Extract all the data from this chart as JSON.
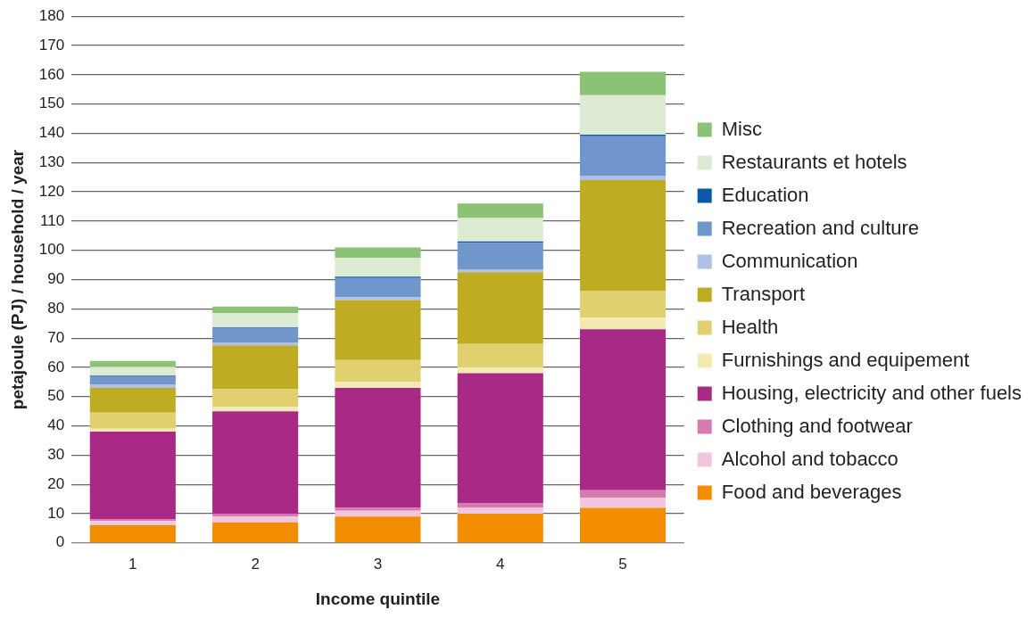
{
  "chart_data": {
    "type": "bar",
    "stacked": true,
    "xlabel": "Income quintile",
    "ylabel": "petajoule (PJ) / household / year",
    "categories": [
      "1",
      "2",
      "3",
      "4",
      "5"
    ],
    "ylim": [
      0,
      180
    ],
    "yticks": [
      0,
      10,
      20,
      30,
      40,
      50,
      60,
      70,
      80,
      90,
      100,
      110,
      120,
      130,
      140,
      150,
      160,
      170,
      180
    ],
    "grid": "y",
    "legend": "right",
    "series": [
      {
        "name": "Food and beverages",
        "color": "#f28c00",
        "values": [
          6,
          7,
          9,
          10,
          12
        ]
      },
      {
        "name": "Alcohol and tobacco",
        "color": "#f2c6de",
        "values": [
          1.5,
          2,
          2,
          2,
          3.5
        ]
      },
      {
        "name": "Clothing and footwear",
        "color": "#d67bb0",
        "values": [
          0.5,
          1,
          1,
          1.5,
          2.5
        ]
      },
      {
        "name": "Housing, electricity and other fuels",
        "color": "#a82a86",
        "values": [
          30,
          35,
          41,
          44.5,
          55
        ]
      },
      {
        "name": "Furnishings and equipement",
        "color": "#f2eab0",
        "values": [
          1,
          1.5,
          2,
          2,
          4
        ]
      },
      {
        "name": "Health",
        "color": "#e0d070",
        "values": [
          5.5,
          6,
          7.5,
          8,
          9
        ]
      },
      {
        "name": "Transport",
        "color": "#c0ac22",
        "values": [
          8.5,
          15,
          20.5,
          24.5,
          38
        ]
      },
      {
        "name": "Communication",
        "color": "#b0c0e6",
        "values": [
          1,
          1,
          1,
          1,
          1.5
        ]
      },
      {
        "name": "Recreation and culture",
        "color": "#7096cc",
        "values": [
          3,
          5,
          6.5,
          9,
          13.5
        ]
      },
      {
        "name": "Education",
        "color": "#0a5aa8",
        "values": [
          0.2,
          0.2,
          0.5,
          0.5,
          0.5
        ]
      },
      {
        "name": "Restaurants et hotels",
        "color": "#dcebd2",
        "values": [
          3,
          4.8,
          6.5,
          8,
          13.5
        ]
      },
      {
        "name": "Misc",
        "color": "#8cc275",
        "values": [
          2,
          2.3,
          3.5,
          5,
          8
        ]
      }
    ]
  }
}
